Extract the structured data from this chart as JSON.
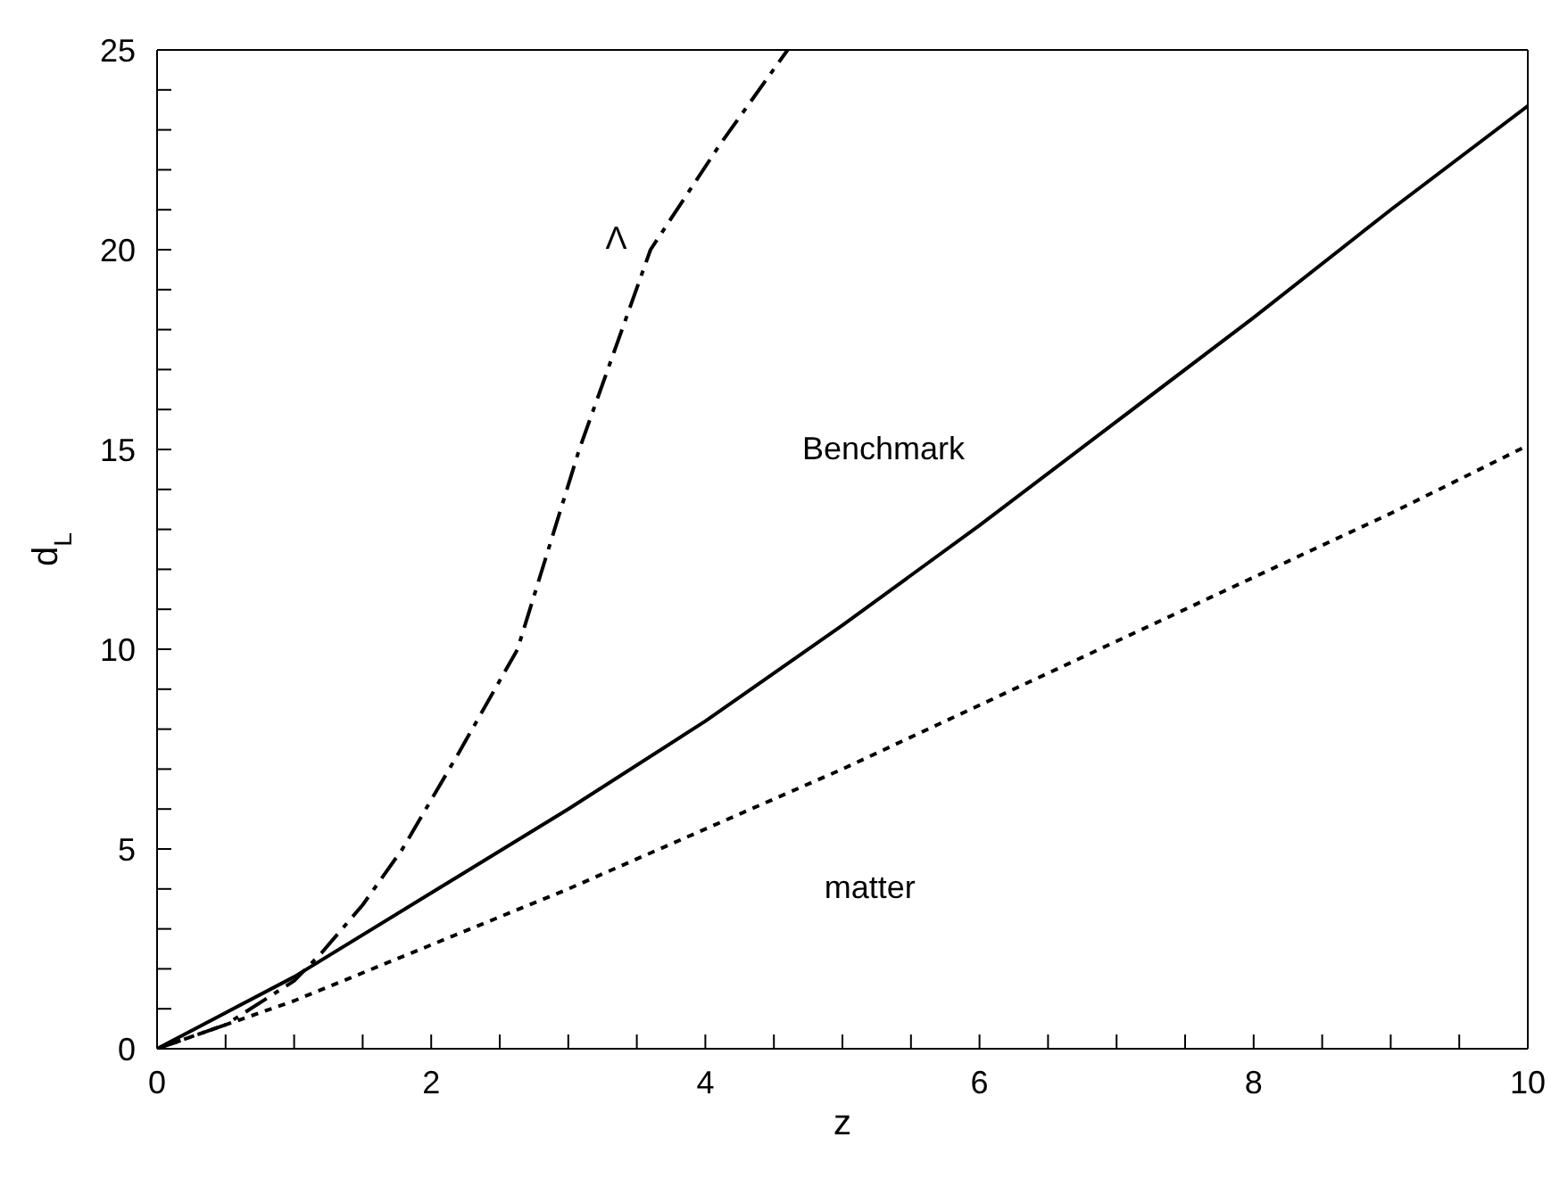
{
  "chart_data": {
    "type": "line",
    "xlabel": "z",
    "ylabel": "d$_{L}$",
    "xlim": [
      0,
      10
    ],
    "ylim": [
      0,
      25
    ],
    "xticks": [
      0,
      {
        "value": 0.5,
        "label": null
      },
      2,
      {
        "value": 1,
        "label": null
      },
      {
        "value": 1.5,
        "label": null
      },
      {
        "value": 2.5,
        "label": null
      },
      {
        "value": 3,
        "label": null
      },
      {
        "value": 3.5,
        "label": null
      },
      4,
      {
        "value": 4.5,
        "label": null
      },
      {
        "value": 5,
        "label": null
      },
      {
        "value": 5.5,
        "label": null
      },
      6,
      {
        "value": 6.5,
        "label": null
      },
      {
        "value": 7,
        "label": null
      },
      {
        "value": 7.5,
        "label": null
      },
      8,
      {
        "value": 8.5,
        "label": null
      },
      {
        "value": 9,
        "label": null
      },
      {
        "value": 9.5,
        "label": null
      },
      10
    ],
    "yticks": [
      0,
      {
        "value": 1,
        "label": null
      },
      {
        "value": 2,
        "label": null
      },
      {
        "value": 3,
        "label": null
      },
      {
        "value": 4,
        "label": null
      },
      5,
      {
        "value": 6,
        "label": null
      },
      {
        "value": 7,
        "label": null
      },
      {
        "value": 8,
        "label": null
      },
      {
        "value": 9,
        "label": null
      },
      10,
      {
        "value": 11,
        "label": null
      },
      {
        "value": 12,
        "label": null
      },
      {
        "value": 13,
        "label": null
      },
      {
        "value": 14,
        "label": null
      },
      15,
      {
        "value": 16,
        "label": null
      },
      {
        "value": 17,
        "label": null
      },
      {
        "value": 18,
        "label": null
      },
      {
        "value": 19,
        "label": null
      },
      20,
      {
        "value": 21,
        "label": null
      },
      {
        "value": 22,
        "label": null
      },
      {
        "value": 23,
        "label": null
      },
      {
        "value": 24,
        "label": null
      },
      25
    ],
    "marker": "none",
    "series": [
      {
        "color": "#000000",
        "line_style": "dashed",
        "x": [
          0,
          0.5,
          1,
          1.2,
          1.5,
          1.79,
          2.2,
          2.63,
          3.08,
          3.6,
          4.1,
          4.6
        ],
        "values": [
          0,
          0.6,
          1.7,
          2.4,
          3.6,
          5,
          7.4,
          10,
          15,
          20,
          22.6,
          25
        ]
      },
      {
        "color": "#000000",
        "line_style": "solid",
        "x": [
          0,
          1,
          2,
          3,
          4,
          5,
          6,
          7,
          8,
          9,
          10
        ],
        "values": [
          0,
          1.8,
          3.9,
          6,
          8.2,
          10.6,
          13.1,
          15.7,
          18.3,
          21,
          23.6
        ]
      },
      {
        "color": "#000000",
        "line_style": "dotted",
        "x": [
          0,
          0.5,
          1,
          2,
          3,
          4,
          5,
          6,
          7,
          8,
          9,
          10
        ],
        "values": [
          0,
          0.6,
          1.2,
          2.6,
          4,
          5.5,
          7,
          8.6,
          10.2,
          11.8,
          13.4,
          15.1
        ]
      }
    ],
    "annotations": [
      "Λ",
      "Benchmark",
      "matter"
    ]
  }
}
